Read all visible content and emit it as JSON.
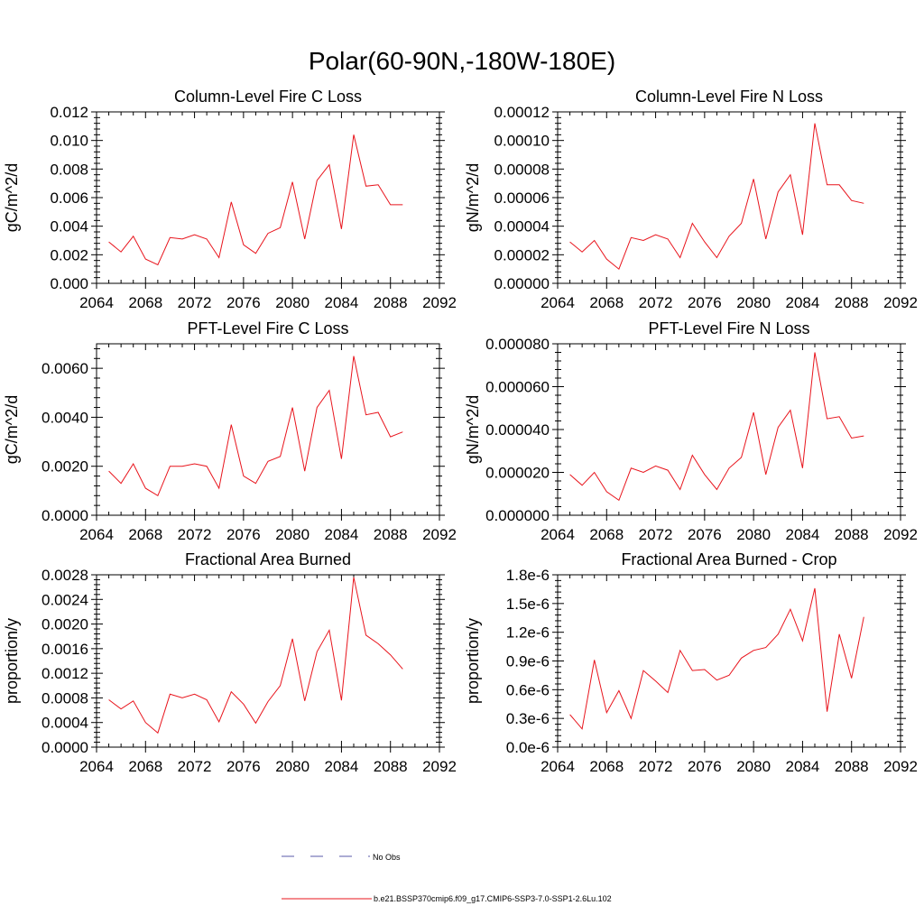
{
  "page": {
    "title": "Polar(60-90N,-180W-180E)"
  },
  "legend": {
    "items": [
      {
        "label": "No Obs",
        "color": "#5a5aa8",
        "dash": "dashed"
      },
      {
        "label": "b.e21.BSSP370cmip6.f09_g17.CMIP6-SSP3-7.0-SSP1-2.6Lu.102",
        "color": "#e8141c",
        "dash": "solid"
      }
    ]
  },
  "chart_data": [
    {
      "type": "line",
      "title": "Column-Level Fire C Loss",
      "ylabel": "gC/m^2/d",
      "xlabel": "",
      "xlim": [
        2064,
        2092
      ],
      "ylim": [
        0,
        0.012
      ],
      "xticks": [
        "2064",
        "2068",
        "2072",
        "2076",
        "2080",
        "2084",
        "2088",
        "2092"
      ],
      "yticks": [
        "0.000",
        "0.002",
        "0.004",
        "0.006",
        "0.008",
        "0.010",
        "0.012"
      ],
      "x": [
        2065,
        2066,
        2067,
        2068,
        2069,
        2070,
        2071,
        2072,
        2073,
        2074,
        2075,
        2076,
        2077,
        2078,
        2079,
        2080,
        2081,
        2082,
        2083,
        2084,
        2085,
        2086,
        2087,
        2088,
        2089
      ],
      "series": [
        {
          "color": "#e8141c",
          "values": [
            0.0029,
            0.0022,
            0.0033,
            0.0017,
            0.0013,
            0.0032,
            0.0031,
            0.0034,
            0.0031,
            0.0018,
            0.0057,
            0.0027,
            0.0021,
            0.0035,
            0.0039,
            0.0071,
            0.0031,
            0.0072,
            0.0083,
            0.0038,
            0.0104,
            0.0068,
            0.0069,
            0.0055,
            0.0055
          ]
        }
      ]
    },
    {
      "type": "line",
      "title": "Column-Level Fire N Loss",
      "ylabel": "gN/m^2/d",
      "xlabel": "",
      "xlim": [
        2064,
        2092
      ],
      "ylim": [
        0,
        0.00012
      ],
      "xticks": [
        "2064",
        "2068",
        "2072",
        "2076",
        "2080",
        "2084",
        "2088",
        "2092"
      ],
      "yticks": [
        "0.00000",
        "0.00002",
        "0.00004",
        "0.00006",
        "0.00008",
        "0.00010",
        "0.00012"
      ],
      "x": [
        2065,
        2066,
        2067,
        2068,
        2069,
        2070,
        2071,
        2072,
        2073,
        2074,
        2075,
        2076,
        2077,
        2078,
        2079,
        2080,
        2081,
        2082,
        2083,
        2084,
        2085,
        2086,
        2087,
        2088,
        2089
      ],
      "series": [
        {
          "color": "#e8141c",
          "values": [
            2.9e-05,
            2.2e-05,
            3e-05,
            1.7e-05,
            1e-05,
            3.2e-05,
            3e-05,
            3.4e-05,
            3.1e-05,
            1.8e-05,
            4.2e-05,
            2.9e-05,
            1.8e-05,
            3.3e-05,
            4.2e-05,
            7.3e-05,
            3.1e-05,
            6.4e-05,
            7.6e-05,
            3.4e-05,
            0.000112,
            6.9e-05,
            6.9e-05,
            5.8e-05,
            5.6e-05
          ]
        }
      ]
    },
    {
      "type": "line",
      "title": "PFT-Level Fire C Loss",
      "ylabel": "gC/m^2/d",
      "xlabel": "",
      "xlim": [
        2064,
        2092
      ],
      "ylim": [
        0,
        0.007
      ],
      "xticks": [
        "2064",
        "2068",
        "2072",
        "2076",
        "2080",
        "2084",
        "2088",
        "2092"
      ],
      "yticks": [
        "0.0000",
        "0.0020",
        "0.0040",
        "0.0060"
      ],
      "ytick_values": [
        0,
        0.002,
        0.004,
        0.006
      ],
      "x": [
        2065,
        2066,
        2067,
        2068,
        2069,
        2070,
        2071,
        2072,
        2073,
        2074,
        2075,
        2076,
        2077,
        2078,
        2079,
        2080,
        2081,
        2082,
        2083,
        2084,
        2085,
        2086,
        2087,
        2088,
        2089
      ],
      "series": [
        {
          "color": "#e8141c",
          "values": [
            0.0018,
            0.0013,
            0.0021,
            0.0011,
            0.0008,
            0.002,
            0.002,
            0.0021,
            0.002,
            0.0011,
            0.0037,
            0.0016,
            0.0013,
            0.0022,
            0.0024,
            0.0044,
            0.0018,
            0.0044,
            0.0051,
            0.0023,
            0.0065,
            0.0041,
            0.0042,
            0.0032,
            0.0034
          ]
        }
      ]
    },
    {
      "type": "line",
      "title": "PFT-Level Fire N Loss",
      "ylabel": "gN/m^2/d",
      "xlabel": "",
      "xlim": [
        2064,
        2092
      ],
      "ylim": [
        0,
        8e-05
      ],
      "xticks": [
        "2064",
        "2068",
        "2072",
        "2076",
        "2080",
        "2084",
        "2088",
        "2092"
      ],
      "yticks": [
        "0.000000",
        "0.000020",
        "0.000040",
        "0.000060",
        "0.000080"
      ],
      "x": [
        2065,
        2066,
        2067,
        2068,
        2069,
        2070,
        2071,
        2072,
        2073,
        2074,
        2075,
        2076,
        2077,
        2078,
        2079,
        2080,
        2081,
        2082,
        2083,
        2084,
        2085,
        2086,
        2087,
        2088,
        2089
      ],
      "series": [
        {
          "color": "#e8141c",
          "values": [
            1.9e-05,
            1.4e-05,
            2e-05,
            1.1e-05,
            7e-06,
            2.2e-05,
            2e-05,
            2.3e-05,
            2.1e-05,
            1.2e-05,
            2.8e-05,
            1.9e-05,
            1.2e-05,
            2.2e-05,
            2.7e-05,
            4.8e-05,
            1.9e-05,
            4.1e-05,
            4.9e-05,
            2.2e-05,
            7.6e-05,
            4.5e-05,
            4.6e-05,
            3.6e-05,
            3.7e-05
          ]
        }
      ]
    },
    {
      "type": "line",
      "title": "Fractional Area Burned",
      "ylabel": "proportion/y",
      "xlabel": "",
      "xlim": [
        2064,
        2092
      ],
      "ylim": [
        0,
        0.0028
      ],
      "xticks": [
        "2064",
        "2068",
        "2072",
        "2076",
        "2080",
        "2084",
        "2088",
        "2092"
      ],
      "yticks": [
        "0.0000",
        "0.0004",
        "0.0008",
        "0.0012",
        "0.0016",
        "0.0020",
        "0.0024",
        "0.0028"
      ],
      "x": [
        2065,
        2066,
        2067,
        2068,
        2069,
        2070,
        2071,
        2072,
        2073,
        2074,
        2075,
        2076,
        2077,
        2078,
        2079,
        2080,
        2081,
        2082,
        2083,
        2084,
        2085,
        2086,
        2087,
        2088,
        2089
      ],
      "series": [
        {
          "color": "#e8141c",
          "values": [
            0.00077,
            0.00062,
            0.00075,
            0.0004,
            0.00023,
            0.00086,
            0.0008,
            0.00086,
            0.00077,
            0.00041,
            0.0009,
            0.0007,
            0.00039,
            0.00074,
            0.001,
            0.00176,
            0.00075,
            0.00155,
            0.0019,
            0.00076,
            0.00276,
            0.00182,
            0.00168,
            0.0015,
            0.00127
          ]
        }
      ]
    },
    {
      "type": "line",
      "title": "Fractional Area Burned - Crop",
      "ylabel": "proportion/y",
      "xlabel": "",
      "xlim": [
        2064,
        2092
      ],
      "ylim": [
        0,
        1.8e-06
      ],
      "xticks": [
        "2064",
        "2068",
        "2072",
        "2076",
        "2080",
        "2084",
        "2088",
        "2092"
      ],
      "yticks": [
        "0.0e-6",
        "0.3e-6",
        "0.6e-6",
        "0.9e-6",
        "1.2e-6",
        "1.5e-6",
        "1.8e-6"
      ],
      "x": [
        2065,
        2066,
        2067,
        2068,
        2069,
        2070,
        2071,
        2072,
        2073,
        2074,
        2075,
        2076,
        2077,
        2078,
        2079,
        2080,
        2081,
        2082,
        2083,
        2084,
        2085,
        2086,
        2087,
        2088,
        2089
      ],
      "series": [
        {
          "color": "#e8141c",
          "values": [
            3.4e-07,
            1.9e-07,
            9.1e-07,
            3.6e-07,
            5.9e-07,
            3e-07,
            8e-07,
            6.9e-07,
            5.7e-07,
            1.01e-06,
            8e-07,
            8.1e-07,
            7e-07,
            7.5e-07,
            9.3e-07,
            1.01e-06,
            1.04e-06,
            1.18e-06,
            1.44e-06,
            1.11e-06,
            1.66e-06,
            3.7e-07,
            1.18e-06,
            7.2e-07,
            1.36e-06
          ]
        }
      ]
    }
  ]
}
